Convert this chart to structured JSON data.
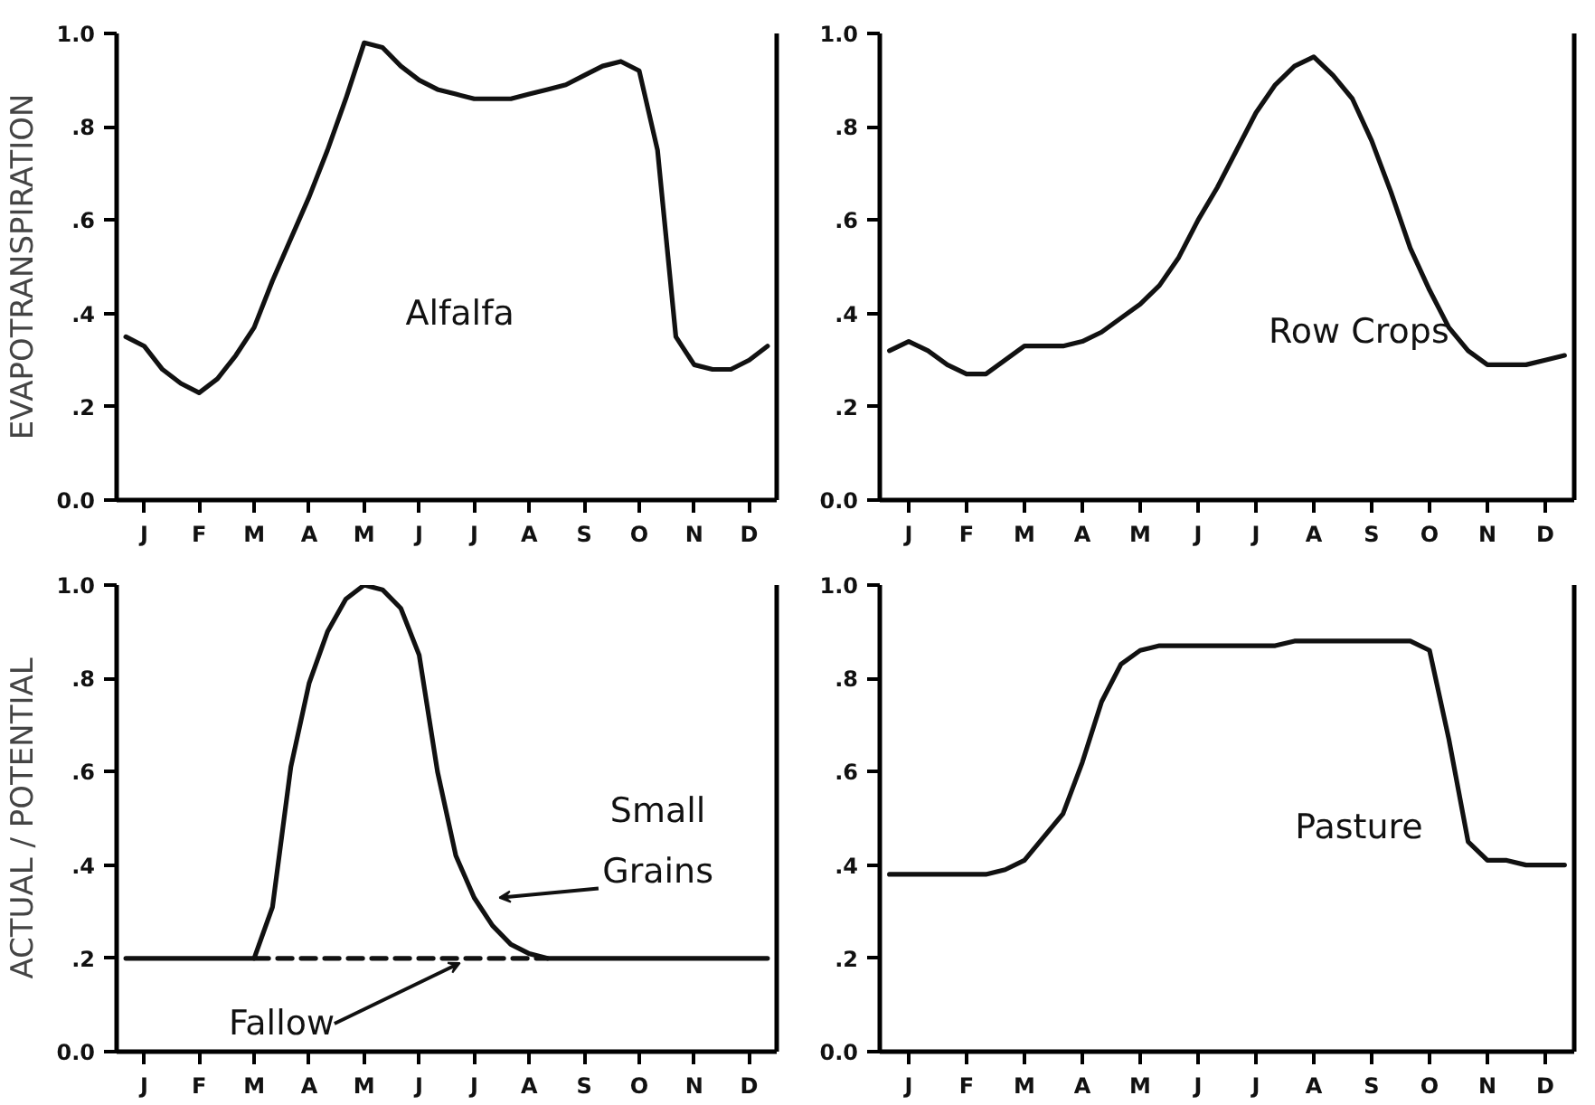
{
  "chart_data": [
    {
      "type": "line",
      "ylabel": "EVAPOTRANSPIRATION",
      "ylim": [
        0,
        1.0
      ],
      "categories": [
        null,
        "J",
        null,
        null,
        "F",
        null,
        null,
        "M",
        null,
        null,
        "A",
        null,
        null,
        "M",
        null,
        null,
        "J",
        null,
        null,
        "J",
        null,
        null,
        "A",
        null,
        null,
        "S",
        null,
        null,
        "O",
        null,
        null,
        "N",
        null,
        null,
        "D",
        null
      ],
      "yticks": [
        {
          "value": 0,
          "label": "0.0"
        },
        {
          "value": 0.2,
          "label": ".2"
        },
        {
          "value": 0.4,
          "label": ".4"
        },
        {
          "value": 0.6,
          "label": ".6"
        },
        {
          "value": 0.8,
          "label": ".8"
        },
        {
          "value": 1.0,
          "label": "1.0"
        }
      ],
      "series": [
        {
          "name": "Alfalfa",
          "color": "#111111",
          "values": [
            0.35,
            0.33,
            0.28,
            0.25,
            0.23,
            0.26,
            0.31,
            0.37,
            0.47,
            0.56,
            0.65,
            0.75,
            0.86,
            0.98,
            0.97,
            0.93,
            0.9,
            0.88,
            0.87,
            0.86,
            0.86,
            0.86,
            0.87,
            0.88,
            0.89,
            0.91,
            0.93,
            0.94,
            0.92,
            0.75,
            0.35,
            0.29,
            0.28,
            0.28,
            0.3,
            0.33
          ]
        }
      ]
    },
    {
      "type": "line",
      "ylim": [
        0,
        1.0
      ],
      "categories": [
        null,
        "J",
        null,
        null,
        "F",
        null,
        null,
        "M",
        null,
        null,
        "A",
        null,
        null,
        "M",
        null,
        null,
        "J",
        null,
        null,
        "J",
        null,
        null,
        "A",
        null,
        null,
        "S",
        null,
        null,
        "O",
        null,
        null,
        "N",
        null,
        null,
        "D",
        null
      ],
      "yticks": [
        {
          "value": 0,
          "label": "0.0"
        },
        {
          "value": 0.2,
          "label": ".2"
        },
        {
          "value": 0.4,
          "label": ".4"
        },
        {
          "value": 0.6,
          "label": ".6"
        },
        {
          "value": 0.8,
          "label": ".8"
        },
        {
          "value": 1.0,
          "label": "1.0"
        }
      ],
      "series": [
        {
          "name": "Row Crops",
          "color": "#111111",
          "values": [
            0.32,
            0.34,
            0.32,
            0.29,
            0.27,
            0.27,
            0.3,
            0.33,
            0.33,
            0.33,
            0.34,
            0.36,
            0.39,
            0.42,
            0.46,
            0.52,
            0.6,
            0.67,
            0.75,
            0.83,
            0.89,
            0.93,
            0.95,
            0.91,
            0.86,
            0.77,
            0.66,
            0.54,
            0.45,
            0.37,
            0.32,
            0.29,
            0.29,
            0.29,
            0.3,
            0.31
          ]
        }
      ]
    },
    {
      "type": "line",
      "ylabel": "ACTUAL / POTENTIAL",
      "ylim": [
        0,
        1.0
      ],
      "categories": [
        null,
        "J",
        null,
        null,
        "F",
        null,
        null,
        "M",
        null,
        null,
        "A",
        null,
        null,
        "M",
        null,
        null,
        "J",
        null,
        null,
        "J",
        null,
        null,
        "A",
        null,
        null,
        "S",
        null,
        null,
        "O",
        null,
        null,
        "N",
        null,
        null,
        "D",
        null
      ],
      "yticks": [
        {
          "value": 0,
          "label": "0.0"
        },
        {
          "value": 0.2,
          "label": ".2"
        },
        {
          "value": 0.4,
          "label": ".4"
        },
        {
          "value": 0.6,
          "label": ".6"
        },
        {
          "value": 0.8,
          "label": ".8"
        },
        {
          "value": 1.0,
          "label": "1.0"
        }
      ],
      "series": [
        {
          "name": "Fallow",
          "color": "#111111",
          "line_style": "dashed",
          "values": [
            null,
            null,
            null,
            null,
            null,
            null,
            null,
            0.2,
            0.2,
            0.2,
            0.2,
            0.2,
            0.2,
            0.2,
            0.2,
            0.2,
            0.2,
            0.2,
            0.2,
            0.2,
            0.2,
            0.2,
            0.2,
            0.2,
            null,
            null,
            null,
            null,
            null,
            null,
            null,
            null,
            null,
            null,
            null,
            null
          ]
        },
        {
          "name": "Small Grains",
          "color": "#111111",
          "values": [
            0.2,
            0.2,
            0.2,
            0.2,
            0.2,
            0.2,
            0.2,
            0.2,
            0.31,
            0.61,
            0.79,
            0.9,
            0.97,
            1.0,
            0.99,
            0.95,
            0.85,
            0.6,
            0.42,
            0.33,
            0.27,
            0.23,
            0.21,
            0.2,
            0.2,
            0.2,
            0.2,
            0.2,
            0.2,
            0.2,
            0.2,
            0.2,
            0.2,
            0.2,
            0.2,
            0.2
          ]
        }
      ]
    },
    {
      "type": "line",
      "ylim": [
        0,
        1.0
      ],
      "categories": [
        null,
        "J",
        null,
        null,
        "F",
        null,
        null,
        "M",
        null,
        null,
        "A",
        null,
        null,
        "M",
        null,
        null,
        "J",
        null,
        null,
        "J",
        null,
        null,
        "A",
        null,
        null,
        "S",
        null,
        null,
        "O",
        null,
        null,
        "N",
        null,
        null,
        "D",
        null
      ],
      "yticks": [
        {
          "value": 0,
          "label": "0.0"
        },
        {
          "value": 0.2,
          "label": ".2"
        },
        {
          "value": 0.4,
          "label": ".4"
        },
        {
          "value": 0.6,
          "label": ".6"
        },
        {
          "value": 0.8,
          "label": ".8"
        },
        {
          "value": 1.0,
          "label": "1.0"
        }
      ],
      "series": [
        {
          "name": "Pasture",
          "color": "#111111",
          "values": [
            0.38,
            0.38,
            0.38,
            0.38,
            0.38,
            0.38,
            0.39,
            0.41,
            0.46,
            0.51,
            0.62,
            0.75,
            0.83,
            0.86,
            0.87,
            0.87,
            0.87,
            0.87,
            0.87,
            0.87,
            0.87,
            0.88,
            0.88,
            0.88,
            0.88,
            0.88,
            0.88,
            0.88,
            0.86,
            0.67,
            0.45,
            0.41,
            0.41,
            0.4,
            0.4,
            0.4
          ]
        }
      ]
    }
  ]
}
